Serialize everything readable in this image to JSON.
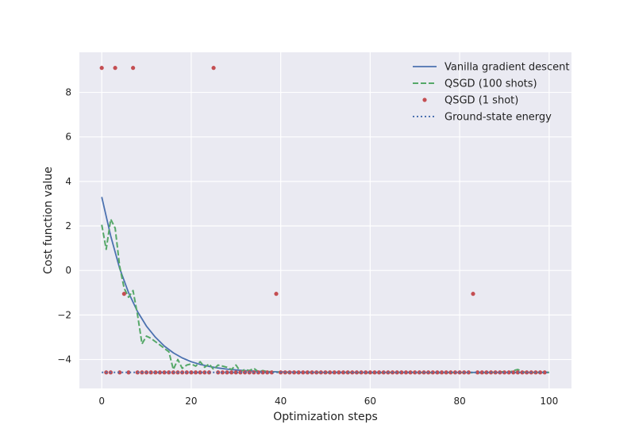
{
  "chart_data": {
    "type": "line",
    "title": "",
    "xlabel": "Optimization steps",
    "ylabel": "Cost function value",
    "xlim": [
      -5,
      105
    ],
    "ylim": [
      -5.3,
      9.8
    ],
    "xticks": [
      0,
      20,
      40,
      60,
      80,
      100
    ],
    "yticks": [
      -4,
      -2,
      0,
      2,
      4,
      6,
      8
    ],
    "xtick_labels": [
      "0",
      "20",
      "40",
      "60",
      "80",
      "100"
    ],
    "ytick_labels": [
      "−4",
      "−2",
      "0",
      "2",
      "4",
      "6",
      "8"
    ],
    "grid": true,
    "legend_position": "top-right",
    "series": [
      {
        "name": "Vanilla gradient descent",
        "style": "solid",
        "color": "#4c72b0",
        "x": [
          0,
          2,
          4,
          6,
          8,
          10,
          12,
          14,
          16,
          18,
          20,
          22,
          24,
          26,
          28,
          30,
          32,
          34,
          36,
          38,
          40,
          45,
          50,
          60,
          70,
          80,
          90,
          100
        ],
        "y": [
          3.3,
          1.55,
          0.1,
          -1.0,
          -1.85,
          -2.5,
          -3.0,
          -3.4,
          -3.7,
          -3.93,
          -4.1,
          -4.22,
          -4.31,
          -4.38,
          -4.43,
          -4.47,
          -4.5,
          -4.52,
          -4.54,
          -4.55,
          -4.56,
          -4.57,
          -4.58,
          -4.58,
          -4.58,
          -4.58,
          -4.58,
          -4.58
        ]
      },
      {
        "name": "QSGD (100 shots)",
        "style": "dashed",
        "color": "#55a868",
        "x": [
          0,
          1,
          2,
          3,
          4,
          5,
          6,
          7,
          8,
          9,
          10,
          11,
          12,
          13,
          14,
          15,
          16,
          17,
          18,
          19,
          20,
          21,
          22,
          23,
          24,
          25,
          26,
          27,
          28,
          29,
          30,
          31,
          32,
          33,
          34,
          35,
          36,
          37,
          38,
          40,
          45,
          50,
          55,
          60,
          65,
          70,
          75,
          80,
          85,
          90,
          91,
          92,
          93,
          94,
          95,
          100
        ],
        "y": [
          2.05,
          0.95,
          2.3,
          1.9,
          0.2,
          -0.8,
          -1.2,
          -0.9,
          -2.0,
          -3.3,
          -2.95,
          -3.05,
          -3.2,
          -3.35,
          -3.5,
          -3.65,
          -4.45,
          -4.0,
          -4.4,
          -4.25,
          -4.2,
          -4.3,
          -4.1,
          -4.35,
          -4.2,
          -4.45,
          -4.25,
          -4.3,
          -4.35,
          -4.45,
          -4.25,
          -4.55,
          -4.45,
          -4.5,
          -4.4,
          -4.55,
          -4.5,
          -4.55,
          -4.55,
          -4.58,
          -4.58,
          -4.58,
          -4.58,
          -4.6,
          -4.58,
          -4.58,
          -4.6,
          -4.58,
          -4.6,
          -4.55,
          -4.58,
          -4.5,
          -4.45,
          -4.55,
          -4.58,
          -4.58
        ]
      },
      {
        "name": "QSGD (1 shot)",
        "style": "points",
        "color": "#c44e52",
        "x": [
          0,
          3,
          5,
          7,
          25,
          39,
          83
        ],
        "y": [
          9.1,
          9.1,
          -1.05,
          9.1,
          9.1,
          -1.05,
          -1.05
        ],
        "baseline_value": -4.58,
        "baseline_x_from": 1,
        "baseline_x_to": 99
      },
      {
        "name": "Ground-state energy",
        "style": "dotted",
        "color": "#4c72b0",
        "x": [
          0,
          100
        ],
        "y": [
          -4.58,
          -4.58
        ]
      }
    ]
  }
}
